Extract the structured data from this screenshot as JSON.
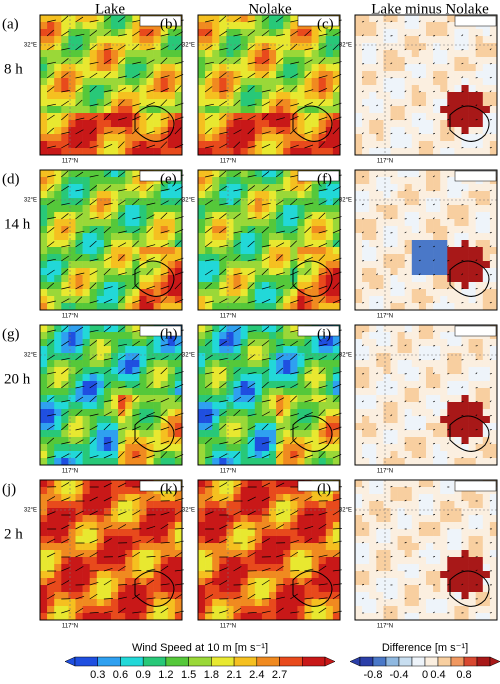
{
  "column_titles": [
    "Lake",
    "Nolake",
    "Lake minus Nolake"
  ],
  "row_labels": [
    "8 h",
    "14 h",
    "20 h",
    "2 h"
  ],
  "panel_labels": [
    "(a)",
    "(b)",
    "(c)",
    "(d)",
    "(e)",
    "(f)",
    "(g)",
    "(h)",
    "(i)",
    "(j)",
    "(k)",
    "(l)"
  ],
  "lat_label": "32°E",
  "lon_label": "117°N",
  "colorbars": [
    {
      "title": "Wind Speed at 10 m [m s⁻¹]",
      "ticks": [
        0.3,
        0.6,
        0.9,
        1.2,
        1.5,
        1.8,
        2.1,
        2.4,
        2.7
      ]
    },
    {
      "title": "Difference [m s⁻¹]",
      "ticks": [
        -0.8,
        -0.4,
        0,
        0.4,
        0.8
      ]
    }
  ]
}
